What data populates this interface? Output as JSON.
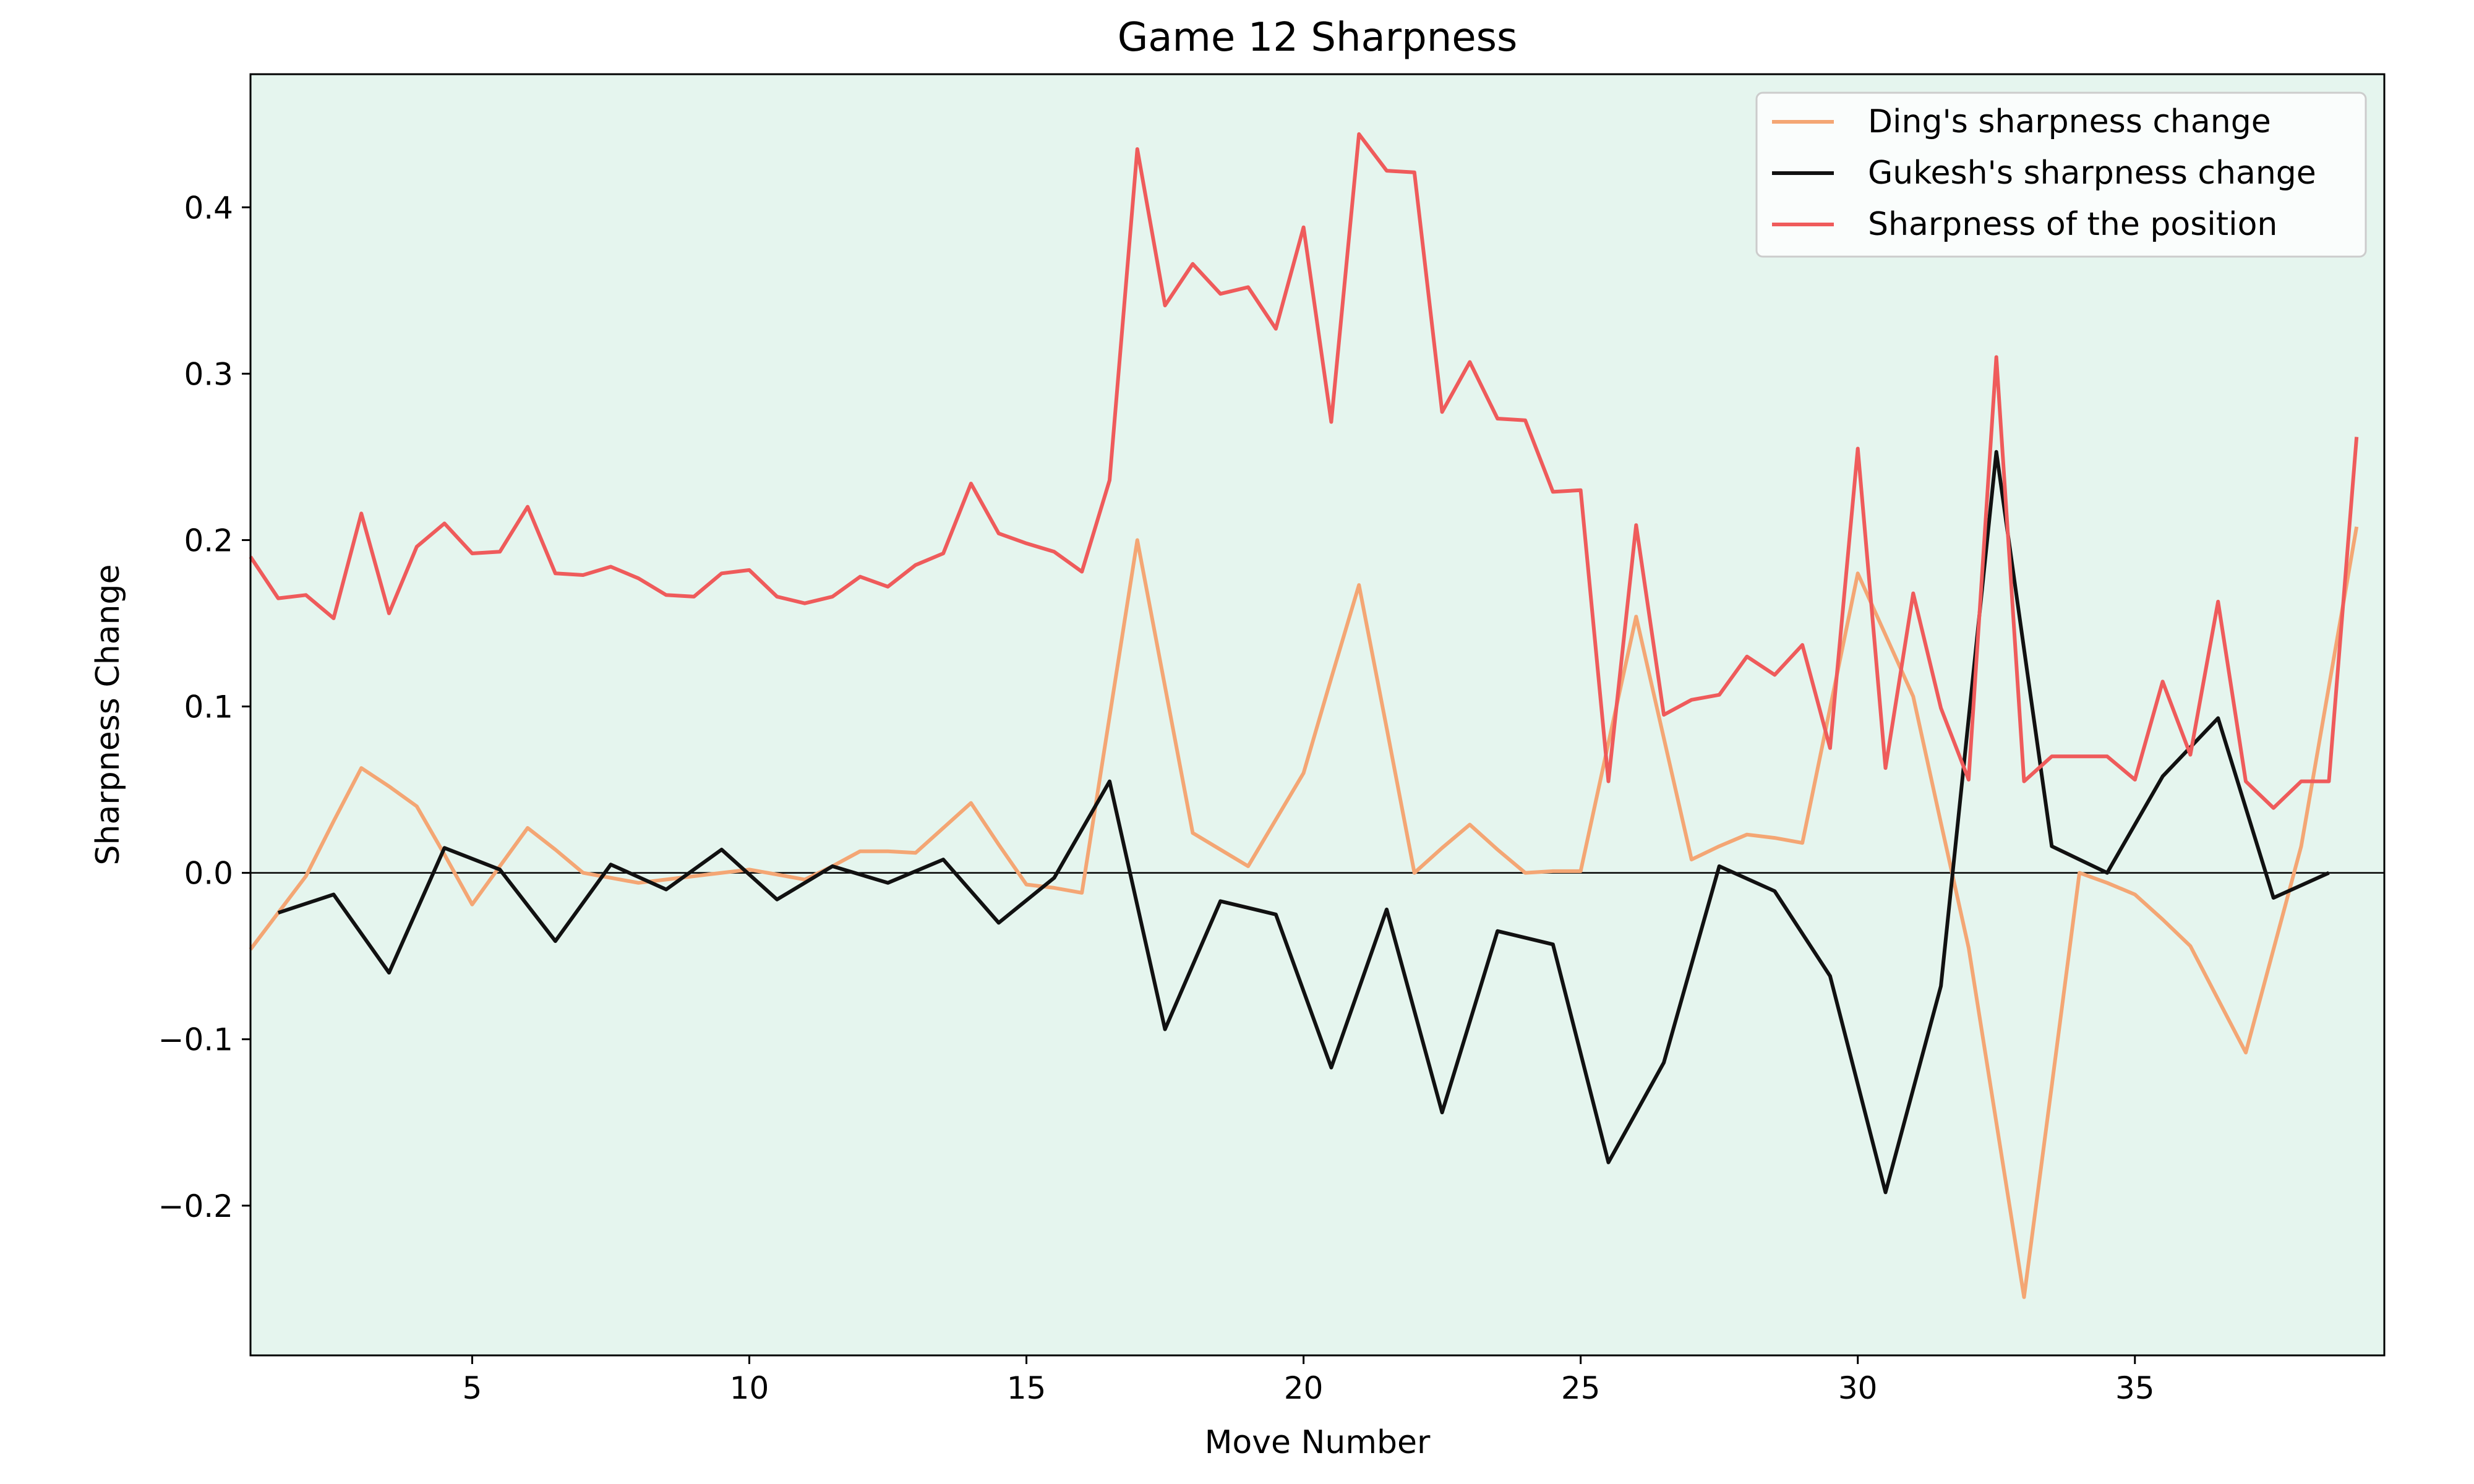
{
  "chart_data": {
    "type": "line",
    "title": "Game 12 Sharpness",
    "xlabel": "Move Number",
    "ylabel": "Sharpness Change",
    "xlim": [
      1,
      39.5
    ],
    "ylim": [
      -0.29,
      0.48
    ],
    "xticks": [
      5,
      10,
      15,
      20,
      25,
      30,
      35
    ],
    "xtick_labels": [
      "5",
      "10",
      "15",
      "20",
      "25",
      "30",
      "35"
    ],
    "yticks": [
      -0.2,
      -0.1,
      0.0,
      0.1,
      0.2,
      0.3,
      0.4
    ],
    "ytick_labels": [
      "−0.2",
      "−0.1",
      "0.0",
      "0.1",
      "0.2",
      "0.3",
      "0.4"
    ],
    "zero_line": true,
    "grid": false,
    "background_color": "#e5f5ee",
    "legend_position": "top-right",
    "series": [
      {
        "name": "Ding's sharpness change",
        "color": "#f4a674",
        "x": [
          1,
          1.5,
          2,
          2.5,
          3,
          3.5,
          4,
          4.5,
          5,
          5.5,
          6,
          6.5,
          7,
          7.5,
          8,
          8.5,
          9,
          9.5,
          10,
          10.5,
          11,
          11.5,
          12,
          12.5,
          13,
          13.5,
          14,
          14.5,
          15,
          15.5,
          16,
          16.5,
          17,
          17.5,
          18,
          18.5,
          19,
          19.5,
          20,
          20.5,
          21,
          21.5,
          22,
          22.5,
          23,
          23.5,
          24,
          24.5,
          25,
          25.5,
          26,
          26.5,
          27,
          27.5,
          28,
          28.5,
          29,
          29.5,
          30,
          30.5,
          31,
          31.5,
          32,
          32.5,
          33,
          33.5,
          34,
          34.5,
          35,
          35.5,
          36,
          36.5,
          37,
          37.5,
          38,
          38.5,
          39
        ],
        "y": [
          -0.046,
          -0.024,
          -0.002,
          0.031,
          0.063,
          0.052,
          0.04,
          0.011,
          -0.019,
          0.004,
          0.027,
          0.014,
          0.0,
          -0.003,
          -0.006,
          -0.004,
          -0.002,
          0.0,
          0.002,
          -0.001,
          -0.004,
          0.004,
          0.013,
          0.013,
          0.012,
          0.027,
          0.042,
          0.017,
          -0.007,
          -0.009,
          -0.012,
          0.094,
          0.2,
          0.112,
          0.024,
          0.014,
          0.004,
          0.032,
          0.06,
          0.117,
          0.173,
          0.087,
          0.0,
          0.015,
          0.029,
          0.014,
          0.0,
          0.001,
          0.001,
          0.078,
          0.154,
          0.081,
          0.008,
          0.016,
          0.023,
          0.021,
          0.018,
          0.099,
          0.18,
          0.143,
          0.106,
          0.03,
          -0.045,
          -0.15,
          -0.255,
          -0.128,
          0.0,
          -0.006,
          -0.013,
          -0.028,
          -0.044,
          -0.076,
          -0.108,
          -0.046,
          0.016,
          0.112,
          0.208
        ]
      },
      {
        "name": "Gukesh's sharpness change",
        "color": "#111111",
        "x": [
          1.5,
          2.5,
          3.5,
          4.5,
          5.5,
          6.5,
          7.5,
          8.5,
          9.5,
          10.5,
          11.5,
          12.5,
          13.5,
          14.5,
          15.5,
          16.5,
          17.5,
          18.5,
          19.5,
          20.5,
          21.5,
          22.5,
          23.5,
          24.5,
          25.5,
          26.5,
          27.5,
          28.5,
          29.5,
          30.5,
          31.5,
          32.5,
          33.5,
          34.5,
          35.5,
          36.5,
          37.5,
          38.5
        ],
        "y": [
          -0.024,
          -0.013,
          -0.06,
          0.015,
          0.002,
          -0.041,
          0.005,
          -0.01,
          0.014,
          -0.016,
          0.004,
          -0.006,
          0.008,
          -0.03,
          -0.003,
          0.055,
          -0.094,
          -0.017,
          -0.025,
          -0.117,
          -0.022,
          -0.144,
          -0.035,
          -0.043,
          -0.174,
          -0.114,
          0.004,
          -0.011,
          -0.062,
          -0.192,
          -0.068,
          0.253,
          0.016,
          0.0,
          0.058,
          0.093,
          -0.015,
          0.0
        ]
      },
      {
        "name": "Sharpness of the position",
        "color": "#ef5b5b",
        "x": [
          1,
          1.5,
          2,
          2.5,
          3,
          3.5,
          4,
          4.5,
          5,
          5.5,
          6,
          6.5,
          7,
          7.5,
          8,
          8.5,
          9,
          9.5,
          10,
          10.5,
          11,
          11.5,
          12,
          12.5,
          13,
          13.5,
          14,
          14.5,
          15,
          15.5,
          16,
          16.5,
          17,
          17.5,
          18,
          18.5,
          19,
          19.5,
          20,
          20.5,
          21,
          21.5,
          22,
          22.5,
          23,
          23.5,
          24,
          24.5,
          25,
          25.5,
          26,
          26.5,
          27,
          27.5,
          28,
          28.5,
          29,
          29.5,
          30,
          30.5,
          31,
          31.5,
          32,
          32.5,
          33,
          33.5,
          34,
          34.5,
          35,
          35.5,
          36,
          36.5,
          37,
          37.5,
          38,
          38.5,
          39
        ],
        "y": [
          0.19,
          0.165,
          0.167,
          0.153,
          0.216,
          0.156,
          0.196,
          0.21,
          0.192,
          0.193,
          0.22,
          0.18,
          0.179,
          0.184,
          0.177,
          0.167,
          0.166,
          0.18,
          0.182,
          0.166,
          0.162,
          0.166,
          0.178,
          0.172,
          0.185,
          0.192,
          0.234,
          0.204,
          0.198,
          0.193,
          0.181,
          0.236,
          0.435,
          0.341,
          0.366,
          0.348,
          0.352,
          0.327,
          0.388,
          0.271,
          0.444,
          0.422,
          0.421,
          0.277,
          0.307,
          0.273,
          0.272,
          0.229,
          0.23,
          0.055,
          0.209,
          0.095,
          0.104,
          0.107,
          0.13,
          0.119,
          0.137,
          0.075,
          0.255,
          0.063,
          0.168,
          0.099,
          0.056,
          0.31,
          0.055,
          0.07,
          0.07,
          0.07,
          0.056,
          0.115,
          0.071,
          0.163,
          0.055,
          0.039,
          0.055,
          0.055,
          0.262
        ]
      }
    ]
  }
}
